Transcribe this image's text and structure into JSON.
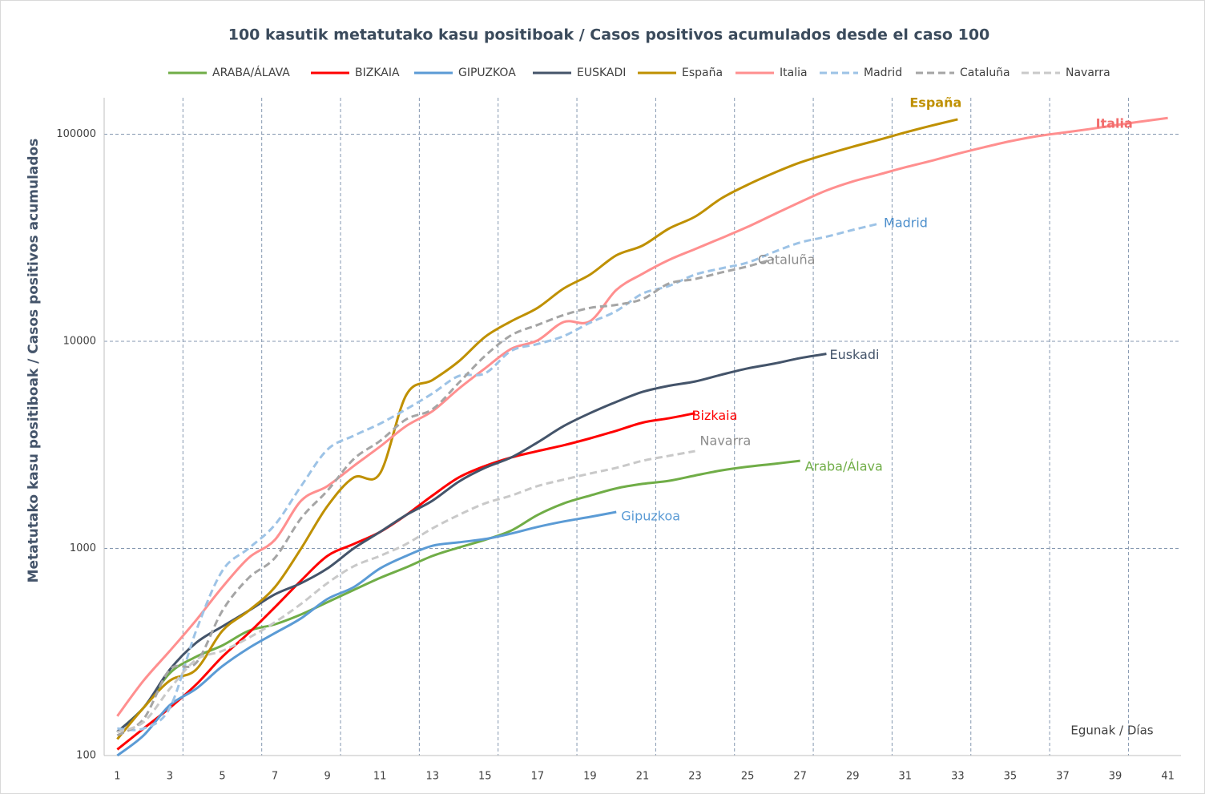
{
  "chart_data": {
    "type": "line",
    "title": "100 kasutik metatutako kasu positiboak / Casos positivos acumulados desde el caso 100",
    "y_label": "Metatutako kasu positiboak / Casos positivos acumulados",
    "x_label": "Egunak / Días",
    "categories": [
      1,
      null,
      3,
      null,
      5,
      null,
      7,
      null,
      9,
      null,
      11,
      null,
      13,
      null,
      15,
      null,
      17,
      null,
      19,
      null,
      21,
      null,
      23,
      null,
      25,
      null,
      27,
      null,
      29,
      null,
      31,
      null,
      33,
      null,
      35,
      null,
      37,
      null,
      39,
      null,
      41
    ],
    "x_grid_interval": 3,
    "ylim": [
      100,
      150000
    ],
    "yticks": [
      100,
      1000,
      10000,
      100000
    ],
    "log_scale": true,
    "grid": true,
    "legend": "top",
    "series": [
      {
        "name": "ARABA/ÁLAVA",
        "label": "Araba/Álava",
        "color": "#70ad47",
        "dash": false,
        "values": [
          130,
          170,
          250,
          300,
          340,
          400,
          430,
          480,
          550,
          630,
          720,
          810,
          920,
          1010,
          1100,
          1220,
          1450,
          1650,
          1800,
          1950,
          2050,
          2120,
          2250,
          2380,
          2480,
          2560,
          2650,
          null,
          null,
          null,
          null,
          null,
          null,
          null,
          null,
          null,
          null,
          null,
          null,
          null,
          null
        ]
      },
      {
        "name": "BIZKAIA",
        "label": "Bizkaia",
        "color": "#ff0000",
        "dash": false,
        "values": [
          107,
          135,
          170,
          220,
          300,
          390,
          520,
          700,
          920,
          1050,
          1200,
          1450,
          1800,
          2200,
          2500,
          2750,
          2950,
          3150,
          3400,
          3700,
          4050,
          4250,
          4500,
          null,
          null,
          null,
          null,
          null,
          null,
          null,
          null,
          null,
          null,
          null,
          null,
          null,
          null,
          null,
          null,
          null,
          null
        ]
      },
      {
        "name": "GIPUZKOA",
        "label": "Gipuzkoa",
        "color": "#5b9bd5",
        "dash": false,
        "values": [
          100,
          125,
          175,
          210,
          270,
          330,
          390,
          460,
          570,
          650,
          800,
          920,
          1030,
          1070,
          1110,
          1180,
          1270,
          1350,
          1420,
          1500,
          null,
          null,
          null,
          null,
          null,
          null,
          null,
          null,
          null,
          null,
          null,
          null,
          null,
          null,
          null,
          null,
          null,
          null,
          null,
          null,
          null
        ]
      },
      {
        "name": "EUSKADI",
        "label": "Euskadi",
        "color": "#44546a",
        "dash": false,
        "values": [
          130,
          170,
          260,
          350,
          420,
          500,
          600,
          680,
          800,
          1000,
          1200,
          1450,
          1700,
          2100,
          2450,
          2750,
          3250,
          3900,
          4500,
          5100,
          5700,
          6100,
          6400,
          6900,
          7400,
          7800,
          8300,
          8700,
          null,
          null,
          null,
          null,
          null,
          null,
          null,
          null,
          null,
          null,
          null,
          null,
          null
        ]
      },
      {
        "name": "España",
        "label": "España",
        "color": "#bf9000",
        "dash": false,
        "values": [
          120,
          170,
          230,
          260,
          400,
          500,
          650,
          1000,
          1600,
          2200,
          2300,
          5500,
          6500,
          8000,
          10500,
          12500,
          14500,
          18000,
          21000,
          26000,
          29000,
          35000,
          40000,
          49000,
          57000,
          65000,
          73000,
          80000,
          87000,
          94000,
          102000,
          110000,
          118000,
          null,
          null,
          null,
          null,
          null,
          null,
          null,
          null
        ]
      },
      {
        "name": "Italia",
        "label": "Italia",
        "color": "#ff8f8f",
        "dash": false,
        "values": [
          155,
          230,
          320,
          450,
          650,
          900,
          1100,
          1700,
          2000,
          2500,
          3100,
          3900,
          4600,
          5900,
          7400,
          9200,
          10100,
          12400,
          12500,
          17700,
          21200,
          24700,
          27900,
          31500,
          35700,
          41000,
          47000,
          53500,
          59100,
          63900,
          69200,
          74400,
          80500,
          86500,
          92500,
          97700,
          101700,
          105800,
          110600,
          115200,
          119800
        ]
      },
      {
        "name": "Madrid",
        "label": "Madrid",
        "color": "#9dc3e6",
        "dash": true,
        "values": [
          135,
          135,
          170,
          400,
          780,
          1000,
          1300,
          2000,
          3000,
          3500,
          4000,
          4700,
          5600,
          6800,
          7000,
          9000,
          9700,
          10600,
          12300,
          14000,
          17000,
          18500,
          21000,
          22500,
          24000,
          27000,
          30000,
          32000,
          34500,
          37000,
          null,
          null,
          null,
          null,
          null,
          null,
          null,
          null,
          null,
          null,
          null
        ]
      },
      {
        "name": "Cataluña",
        "label": "Cataluña",
        "color": "#a5a5a5",
        "dash": true,
        "values": [
          125,
          150,
          260,
          280,
          500,
          720,
          900,
          1400,
          1900,
          2700,
          3300,
          4200,
          4700,
          6300,
          8500,
          10700,
          12000,
          13400,
          14500,
          15000,
          16000,
          19000,
          20000,
          21500,
          23000,
          25000,
          null,
          null,
          null,
          null,
          null,
          null,
          null,
          null,
          null,
          null,
          null,
          null,
          null,
          null,
          null
        ]
      },
      {
        "name": "Navarra",
        "label": "Navarra",
        "color": "#c9c9c9",
        "dash": true,
        "values": [
          130,
          145,
          210,
          290,
          320,
          370,
          440,
          540,
          680,
          820,
          920,
          1050,
          1250,
          1450,
          1650,
          1800,
          2000,
          2150,
          2300,
          2450,
          2650,
          2800,
          2950,
          null,
          null,
          null,
          null,
          null,
          null,
          null,
          null,
          null,
          null,
          null,
          null,
          null,
          null,
          null,
          null,
          null,
          null
        ]
      }
    ]
  }
}
